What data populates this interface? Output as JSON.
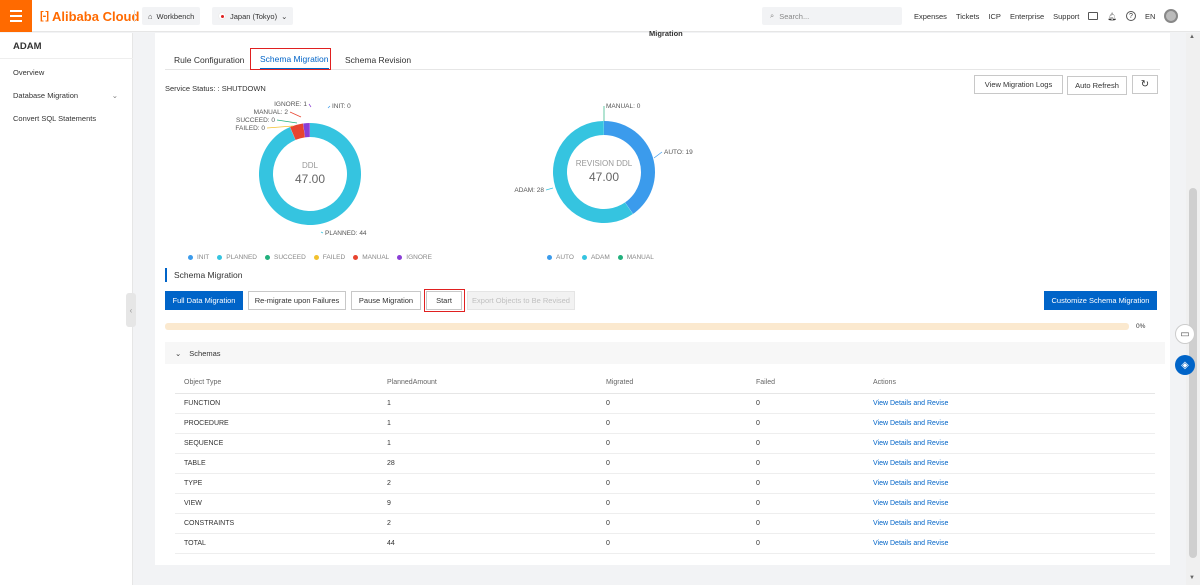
{
  "topbar": {
    "brand": "Alibaba Cloud",
    "workbench": "Workbench",
    "region": "Japan (Tokyo)",
    "search_placeholder": "Search...",
    "links": [
      "Expenses",
      "Tickets",
      "ICP",
      "Enterprise",
      "Support"
    ],
    "lang": "EN"
  },
  "sidebar": {
    "title": "ADAM",
    "items": [
      {
        "label": "Overview"
      },
      {
        "label": "Database Migration"
      },
      {
        "label": "Convert SQL Statements"
      }
    ]
  },
  "main": {
    "header_title": "Migration",
    "tabs": [
      {
        "label": "Rule Configuration"
      },
      {
        "label": "Schema Migration"
      },
      {
        "label": "Schema Revision"
      }
    ],
    "service_status": "Service Status: : SHUTDOWN",
    "view_logs": "View Migration Logs",
    "auto_refresh": "Auto Refresh",
    "section_title": "Schema Migration",
    "buttons": {
      "full": "Full Data Migration",
      "remigrate": "Re-migrate upon Failures",
      "pause": "Pause Migration",
      "start": "Start",
      "export": "Export Objects to Be Revised",
      "customize": "Customize Schema Migration"
    },
    "progress_value": 0,
    "progress_label": "0%",
    "schemas_label": "Schemas"
  },
  "chart_data": [
    {
      "type": "pie",
      "title": "DDL",
      "center_value": "47.00",
      "labels": [
        "INIT",
        "PLANNED",
        "SUCCEED",
        "FAILED",
        "MANUAL",
        "IGNORE"
      ],
      "values": [
        0,
        44,
        0,
        0,
        2,
        1
      ],
      "callouts": [
        "INIT: 0",
        "PLANNED: 44",
        "SUCCEED: 0",
        "FAILED: 0",
        "MANUAL: 2",
        "IGNORE: 1"
      ],
      "colors": [
        "#3b9bec",
        "#35c4e0",
        "#22b07d",
        "#f2c12e",
        "#e8442f",
        "#8a3ed6"
      ],
      "legend_position": "bottom"
    },
    {
      "type": "pie",
      "title": "REVISION DDL",
      "center_value": "47.00",
      "labels": [
        "AUTO",
        "ADAM",
        "MANUAL"
      ],
      "values": [
        19,
        28,
        0
      ],
      "callouts": [
        "AUTO: 19",
        "ADAM: 28",
        "MANUAL: 0"
      ],
      "colors": [
        "#3b9bec",
        "#35c4e0",
        "#22b07d"
      ],
      "legend_position": "bottom"
    }
  ],
  "table": {
    "headers": [
      "Object Type",
      "PlannedAmount",
      "Migrated",
      "Failed",
      "Actions"
    ],
    "rows": [
      [
        "FUNCTION",
        "1",
        "0",
        "0",
        "View Details and Revise"
      ],
      [
        "PROCEDURE",
        "1",
        "0",
        "0",
        "View Details and Revise"
      ],
      [
        "SEQUENCE",
        "1",
        "0",
        "0",
        "View Details and Revise"
      ],
      [
        "TABLE",
        "28",
        "0",
        "0",
        "View Details and Revise"
      ],
      [
        "TYPE",
        "2",
        "0",
        "0",
        "View Details and Revise"
      ],
      [
        "VIEW",
        "9",
        "0",
        "0",
        "View Details and Revise"
      ],
      [
        "CONSTRAINTS",
        "2",
        "0",
        "0",
        "View Details and Revise"
      ],
      [
        "TOTAL",
        "44",
        "0",
        "0",
        "View Details and Revise"
      ]
    ]
  },
  "colors": {
    "accent": "#0064c8",
    "brand": "#ff6a00",
    "highlight": "#e02020"
  }
}
